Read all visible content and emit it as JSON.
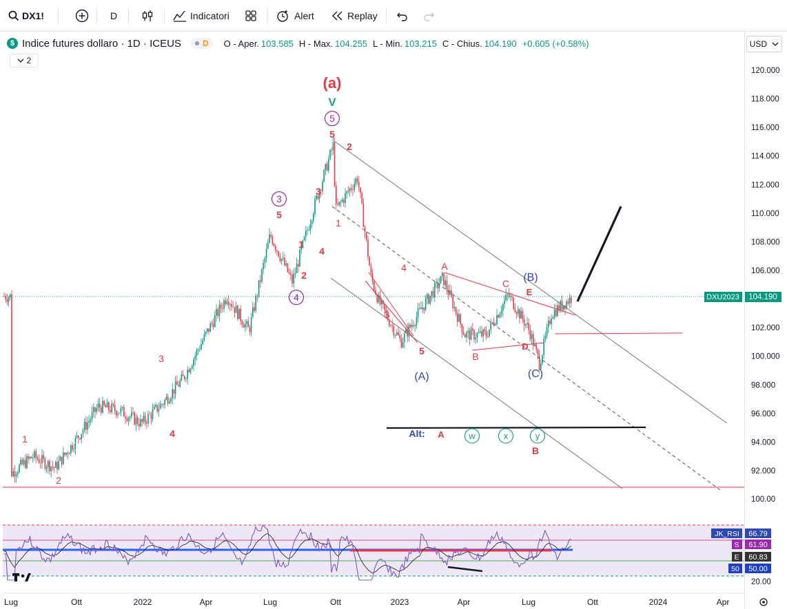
{
  "toolbar": {
    "symbol": "DX1!",
    "interval": "D",
    "indicators_label": "Indicatori",
    "alert_label": "Alert",
    "replay_label": "Replay"
  },
  "legend": {
    "title": "Indice futures dollaro · 1D · ICEUS",
    "badge": "D",
    "open_label": "O - Aper.",
    "open": "103.585",
    "high_label": "H - Max.",
    "high": "104.255",
    "low_label": "L - Min.",
    "low": "103.215",
    "close_label": "C - Chius.",
    "close": "104.190",
    "change": "+0.605 (+0.58%)",
    "collapse_count": "2"
  },
  "currency": "USD",
  "chart_data": [
    {
      "type": "candlestick",
      "symbol": "DX1!",
      "x_ticks": [
        "Lug",
        "Ott",
        "2022",
        "Apr",
        "Lug",
        "Ott",
        "2023",
        "Apr",
        "Lug",
        "Ott",
        "2024",
        "Apr"
      ],
      "y_ticks": [
        "120.000",
        "118.000",
        "116.000",
        "114.000",
        "112.000",
        "110.000",
        "108.000",
        "106.000",
        "104.000",
        "102.000",
        "100.000",
        "98.000",
        "96.000",
        "94.000",
        "92.000"
      ],
      "ylim": [
        90.8,
        121.0
      ],
      "approx_path": [
        {
          "x": "2021-07",
          "y": 91.8
        },
        {
          "x": "2021-08",
          "y": 93.0
        },
        {
          "x": "2021-09",
          "y": 92.2
        },
        {
          "x": "2021-10",
          "y": 94.2
        },
        {
          "x": "2021-11",
          "y": 96.5
        },
        {
          "x": "2021-12",
          "y": 96.2
        },
        {
          "x": "2022-01",
          "y": 95.3
        },
        {
          "x": "2022-02",
          "y": 96.8
        },
        {
          "x": "2022-03",
          "y": 98.5
        },
        {
          "x": "2022-04",
          "y": 101.5
        },
        {
          "x": "2022-05",
          "y": 104.2
        },
        {
          "x": "2022-06",
          "y": 101.8
        },
        {
          "x": "2022-07",
          "y": 108.5
        },
        {
          "x": "2022-08",
          "y": 105.2
        },
        {
          "x": "2022-09",
          "y": 110.5
        },
        {
          "x": "2022-09-28",
          "y": 114.8
        },
        {
          "x": "2022-10",
          "y": 110.2
        },
        {
          "x": "2022-11",
          "y": 112.5
        },
        {
          "x": "2022-11-20",
          "y": 105.5
        },
        {
          "x": "2022-12",
          "y": 103.8
        },
        {
          "x": "2023-01",
          "y": 101.0
        },
        {
          "x": "2023-02",
          "y": 103.5
        },
        {
          "x": "2023-03",
          "y": 105.5
        },
        {
          "x": "2023-04",
          "y": 101.5
        },
        {
          "x": "2023-05",
          "y": 101.5
        },
        {
          "x": "2023-06",
          "y": 104.3
        },
        {
          "x": "2023-07",
          "y": 101.8
        },
        {
          "x": "2023-07-15",
          "y": 99.5
        },
        {
          "x": "2023-08",
          "y": 103.0
        },
        {
          "x": "2023-09",
          "y": 104.2
        }
      ],
      "price_tag": {
        "label": "DXU2023",
        "value": "104.190"
      },
      "annotations": [
        "(a)",
        "V",
        "5",
        "5",
        "2",
        "3",
        "1",
        "3",
        "5",
        "1",
        "4",
        "2",
        "4",
        "1",
        "2",
        "3",
        "4",
        "A",
        "4",
        "3",
        "5",
        "(A)",
        "B",
        "C",
        "E",
        "(B)",
        "D",
        "(C)",
        "Alt:",
        "A",
        "w",
        "x",
        "y",
        "B"
      ]
    },
    {
      "type": "line",
      "name": "JK_RSI",
      "y_ticks": [
        "100.00",
        "20.00"
      ],
      "values": [
        {
          "label": "JK_RSI",
          "value": "66.79"
        },
        {
          "label": "S",
          "value": "61.90"
        },
        {
          "label": "E",
          "value": "60.83"
        },
        {
          "label": "50",
          "value": "50.00"
        }
      ]
    }
  ],
  "colors": {
    "up": "#089981",
    "down": "#f23645",
    "wave_red": "#e03a45",
    "wave_purple": "#9c27b0",
    "wave_blue": "#2d48b0",
    "wave_teal": "#22a17a",
    "rsi_line": "#7e57c2",
    "rsi_bg": "#ede7f6"
  }
}
